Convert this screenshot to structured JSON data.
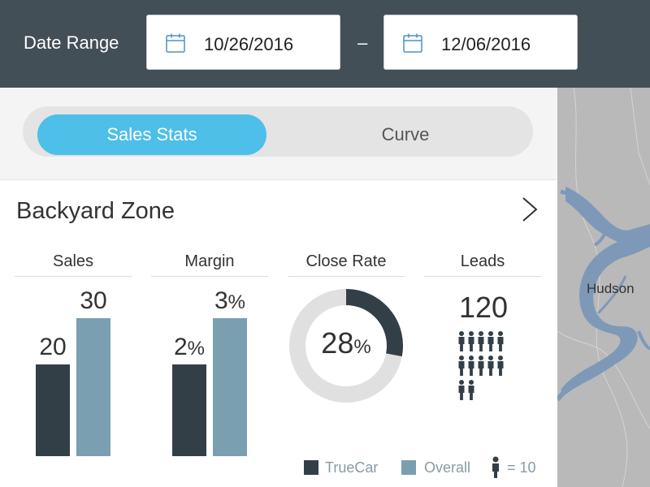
{
  "header": {
    "date_range_label": "Date Range",
    "start_date": "10/26/2016",
    "separator": "–",
    "end_date": "12/06/2016",
    "background": "#434f57"
  },
  "tabs": [
    {
      "label": "Sales Stats",
      "active": true
    },
    {
      "label": "Curve",
      "active": false
    }
  ],
  "accent_color": "#4dbfe9",
  "zone": {
    "title": "Backyard Zone",
    "metrics": {
      "sales": {
        "label": "Sales",
        "truecar": 20,
        "overall": 30,
        "truecar_text": "20",
        "overall_text": "30"
      },
      "margin": {
        "label": "Margin",
        "truecar": 2,
        "overall": 3,
        "truecar_text": "2",
        "overall_text": "3",
        "unit": "%"
      },
      "close_rate": {
        "label": "Close Rate",
        "value": 28,
        "value_text": "28",
        "unit": "%"
      },
      "leads": {
        "label": "Leads",
        "value": 120,
        "value_text": "120",
        "icons": 12
      }
    }
  },
  "legend": {
    "truecar": {
      "label": "TrueCar",
      "color": "#333f47"
    },
    "overall": {
      "label": "Overall",
      "color": "#7a9fb0"
    },
    "person": {
      "label": "= 10",
      "icon": "person-icon"
    }
  },
  "map": {
    "city_label": "Hudson"
  }
}
